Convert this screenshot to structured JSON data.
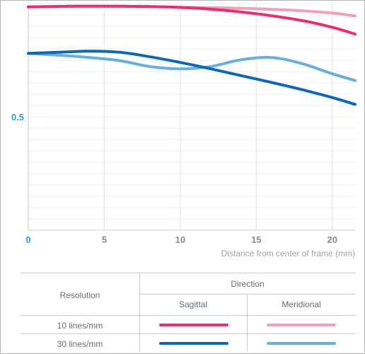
{
  "chart_data": {
    "type": "line",
    "title": "",
    "xlabel": "Distance from center of frame (mm)",
    "ylabel": "",
    "xlim": [
      0,
      21.5
    ],
    "ylim": [
      0,
      1
    ],
    "x_ticks": [
      0,
      5,
      10,
      15,
      20
    ],
    "x_tick_labels": [
      "0",
      "5",
      "10",
      "15",
      "20"
    ],
    "y_ticks": [
      0.5
    ],
    "y_tick_labels": [
      "0.5"
    ],
    "grid": true,
    "series": [
      {
        "resolution": "10 lines/mm",
        "direction": "Meridional",
        "color": "#f2a0b4",
        "x": [
          0,
          3,
          6,
          9,
          12,
          15,
          18,
          20,
          21.5
        ],
        "y": [
          0.985,
          0.988,
          0.988,
          0.985,
          0.982,
          0.977,
          0.968,
          0.958,
          0.945
        ]
      },
      {
        "resolution": "10 lines/mm",
        "direction": "Sagittal",
        "color": "#e8306a",
        "x": [
          0,
          3,
          6,
          9,
          12,
          15,
          18,
          20,
          21.5
        ],
        "y": [
          0.985,
          0.988,
          0.988,
          0.985,
          0.975,
          0.955,
          0.925,
          0.895,
          0.865
        ]
      },
      {
        "resolution": "30 lines/mm",
        "direction": "Meridional",
        "color": "#6aaede",
        "x": [
          0,
          2,
          4,
          6,
          8,
          10,
          12,
          14,
          16,
          18,
          20,
          21.5
        ],
        "y": [
          0.78,
          0.772,
          0.762,
          0.748,
          0.722,
          0.712,
          0.722,
          0.752,
          0.762,
          0.735,
          0.69,
          0.66
        ]
      },
      {
        "resolution": "30 lines/mm",
        "direction": "Sagittal",
        "color": "#0d68b8",
        "x": [
          0,
          2,
          4,
          6,
          8,
          10,
          12,
          14,
          16,
          18,
          20,
          21.5
        ],
        "y": [
          0.78,
          0.785,
          0.79,
          0.785,
          0.765,
          0.74,
          0.712,
          0.682,
          0.652,
          0.62,
          0.585,
          0.555
        ]
      }
    ]
  },
  "legend": {
    "direction_header": "Direction",
    "resolution_header": "Resolution",
    "col_sagittal": "Sagittal",
    "col_meridional": "Meridional",
    "rows": [
      {
        "label": "10 lines/mm",
        "sagittal_color": "#e8306a",
        "meridional_color": "#f2a0b4"
      },
      {
        "label": "30 lines/mm",
        "sagittal_color": "#0d68b8",
        "meridional_color": "#6aaede"
      }
    ]
  }
}
